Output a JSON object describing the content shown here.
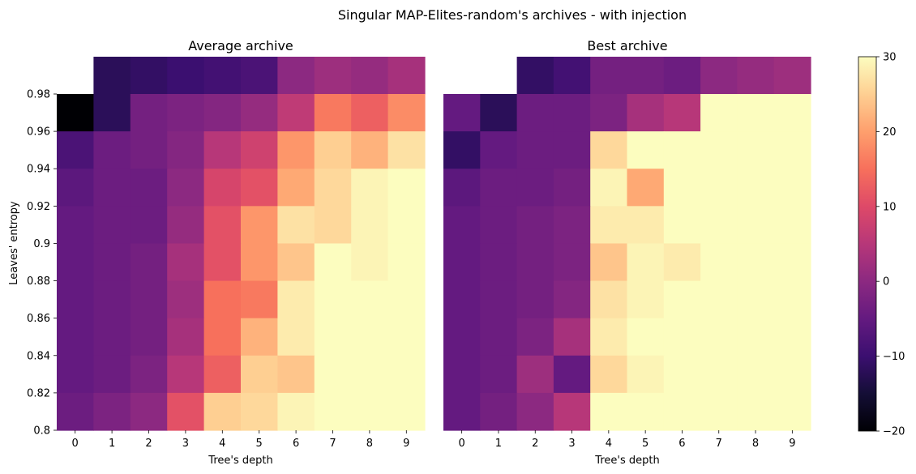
{
  "suptitle": "Singular MAP-Elites-random's archives - with injection",
  "colorbar": {
    "min": -20,
    "max": 30,
    "ticks": [
      -20,
      -10,
      0,
      10,
      20,
      30
    ],
    "tick_labels": [
      "−20",
      "−10",
      "0",
      "10",
      "20",
      "30"
    ],
    "colormap": "magma"
  },
  "chart_data": [
    {
      "type": "heatmap",
      "title": "Average archive",
      "xlabel": "Tree's depth",
      "ylabel": "Leaves' entropy",
      "x_categories": [
        "0",
        "1",
        "2",
        "3",
        "4",
        "5",
        "6",
        "7",
        "8",
        "9"
      ],
      "y_tick_labels": [
        "0.98",
        "0.96",
        "0.94",
        "0.92",
        "0.9",
        "0.88",
        "0.86",
        "0.84",
        "0.82",
        "0.8"
      ],
      "rows_top_to_bottom": [
        [
          null,
          -12,
          -11,
          -10,
          -9,
          -8,
          0,
          2,
          1,
          3
        ],
        [
          -20,
          -12,
          -3,
          -2,
          -1,
          1,
          6,
          16,
          13,
          18
        ],
        [
          -8,
          -4,
          -3,
          -1,
          5,
          8,
          19,
          25,
          22,
          27
        ],
        [
          -6,
          -4,
          -4,
          0,
          9,
          11,
          21,
          26,
          29,
          30
        ],
        [
          -5,
          -4,
          -4,
          1,
          11,
          19,
          27,
          26,
          29,
          30
        ],
        [
          -5,
          -4,
          -3,
          3,
          11,
          19,
          24,
          30,
          29,
          30
        ],
        [
          -5,
          -4,
          -3,
          2,
          15,
          16,
          28,
          30,
          30,
          30
        ],
        [
          -5,
          -4,
          -3,
          3,
          15,
          22,
          28,
          30,
          30,
          30
        ],
        [
          -5,
          -4,
          -2,
          5,
          13,
          25,
          24,
          30,
          30,
          30
        ],
        [
          -4,
          -2,
          0,
          11,
          25,
          26,
          29,
          30,
          30,
          30
        ]
      ]
    },
    {
      "type": "heatmap",
      "title": "Best archive",
      "xlabel": "Tree's depth",
      "ylabel": "",
      "x_categories": [
        "0",
        "1",
        "2",
        "3",
        "4",
        "5",
        "6",
        "7",
        "8",
        "9"
      ],
      "y_tick_labels": [],
      "rows_top_to_bottom": [
        [
          null,
          null,
          -11,
          -9,
          -3,
          -3,
          -4,
          0,
          1,
          2
        ],
        [
          -5,
          -12,
          -4,
          -4,
          -2,
          3,
          5,
          30,
          30,
          30
        ],
        [
          -11,
          -5,
          -4,
          -4,
          26,
          30,
          30,
          30,
          30,
          30
        ],
        [
          -6,
          -4,
          -4,
          -3,
          29,
          21,
          30,
          30,
          30,
          30
        ],
        [
          -5,
          -4,
          -3,
          -2,
          28,
          28,
          30,
          30,
          30,
          30
        ],
        [
          -5,
          -4,
          -3,
          -2,
          24,
          29,
          28,
          30,
          30,
          30
        ],
        [
          -5,
          -4,
          -3,
          -1,
          27,
          29,
          30,
          30,
          30,
          30
        ],
        [
          -5,
          -4,
          -2,
          3,
          28,
          30,
          30,
          30,
          30,
          30
        ],
        [
          -5,
          -4,
          2,
          -5,
          26,
          29,
          30,
          30,
          30,
          30
        ],
        [
          -5,
          -3,
          0,
          5,
          30,
          30,
          30,
          30,
          30,
          30
        ]
      ]
    }
  ]
}
